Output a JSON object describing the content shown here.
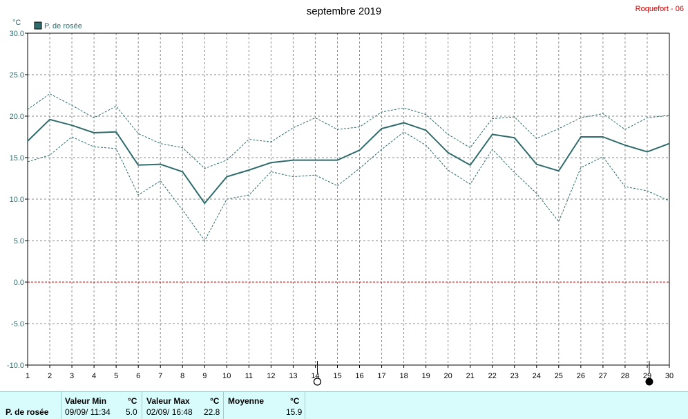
{
  "station": "Roquefort - 06",
  "stats": {
    "series_label": "P. de rosée",
    "min_header": "Valeur Min",
    "max_header": "Valeur Max",
    "avg_header": "Moyenne",
    "unit": "°C",
    "min_date": "09/09/ 11:34",
    "min_value": "5.0",
    "max_date": "02/09/ 16:48",
    "max_value": "22.8",
    "avg_value": "15.9"
  },
  "chart_data": {
    "type": "line",
    "title": "septembre 2019",
    "ylabel": "°C",
    "xlabel": "",
    "ylim": [
      -10,
      30
    ],
    "xlim": [
      1,
      30
    ],
    "grid": true,
    "legend_position": "top-left",
    "yticks": [
      "30.0",
      "25.0",
      "20.0",
      "15.0",
      "10.0",
      "5.0",
      "0.0",
      "-5.0",
      "-10.0"
    ],
    "x": [
      1,
      2,
      3,
      4,
      5,
      6,
      7,
      8,
      9,
      10,
      11,
      12,
      13,
      14,
      15,
      16,
      17,
      18,
      19,
      20,
      21,
      22,
      23,
      24,
      25,
      26,
      27,
      28,
      29,
      30
    ],
    "moon_markers": [
      {
        "day": 14,
        "phase": "full"
      },
      {
        "day": 29,
        "phase": "new"
      }
    ],
    "series": [
      {
        "name": "P. de rosée",
        "color": "#2f6b6b",
        "style": "solid",
        "values": [
          17.0,
          19.6,
          18.9,
          18.0,
          18.1,
          14.1,
          14.2,
          13.3,
          9.5,
          12.7,
          13.5,
          14.4,
          14.7,
          14.7,
          14.7,
          15.9,
          18.5,
          19.2,
          18.3,
          15.6,
          14.1,
          17.8,
          17.4,
          14.2,
          13.4,
          17.5,
          17.5,
          16.5,
          15.7,
          16.7
        ]
      },
      {
        "color": "#2f6b6b",
        "style": "dashed",
        "values": [
          20.8,
          22.7,
          21.3,
          19.8,
          21.2,
          17.9,
          16.7,
          16.2,
          13.7,
          14.7,
          17.2,
          16.9,
          18.6,
          19.8,
          18.4,
          18.7,
          20.5,
          21.0,
          20.2,
          17.8,
          16.2,
          19.7,
          19.9,
          17.3,
          18.5,
          19.8,
          20.3,
          18.4,
          19.8,
          20.1
        ]
      },
      {
        "color": "#2f6b6b",
        "style": "dashed",
        "values": [
          14.5,
          15.3,
          17.5,
          16.3,
          16.1,
          10.5,
          12.2,
          8.7,
          5.0,
          10.0,
          10.5,
          13.3,
          12.7,
          12.9,
          11.6,
          13.7,
          16.0,
          18.1,
          16.5,
          13.5,
          11.8,
          16.0,
          13.2,
          10.7,
          7.3,
          13.8,
          15.1,
          11.5,
          11.0,
          9.8
        ]
      }
    ],
    "reference_lines": [
      {
        "y": 0,
        "color": "#cc0000",
        "style": "dashed"
      }
    ]
  }
}
